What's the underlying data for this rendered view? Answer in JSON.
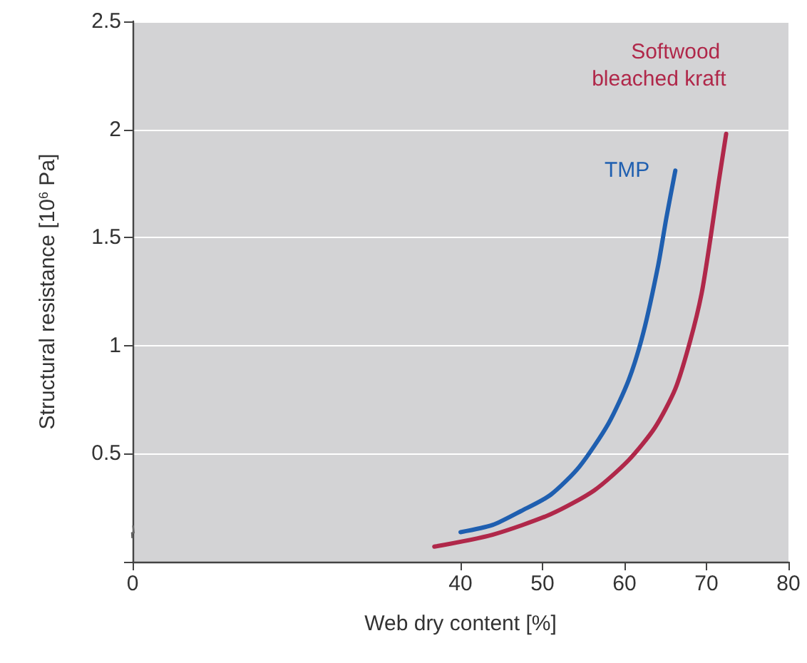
{
  "chart_data": {
    "type": "line",
    "xlabel": "Web dry content [%]",
    "ylabel": "Structural resistance [10$^{6}$ Pa]",
    "xlim": [
      0,
      80
    ],
    "xticks": [
      0,
      40,
      50,
      60,
      70,
      80
    ],
    "ylim": [
      0,
      2.5
    ],
    "yticks": [
      {
        "value": 0,
        "label": null
      },
      0.5,
      1.0,
      1.5,
      2.0,
      2.5
    ],
    "grid": "y",
    "legend": false,
    "marker": "none",
    "line_style": "solid",
    "series": [
      {
        "name": "TMP",
        "color": "#1f5fb0",
        "x": [
          40,
          43.9,
          47.4,
          51.0,
          54.5,
          58.05,
          60.5,
          62.3,
          64.1,
          65.1,
          66.2
        ],
        "values": [
          0.137,
          0.17,
          0.235,
          0.31,
          0.44,
          0.64,
          0.84,
          1.06,
          1.37,
          1.59,
          1.81
        ]
      },
      {
        "name": "Softwood bleached kraft",
        "color": "#b0284a",
        "x": [
          36.8,
          43.9,
          51.0,
          56.3,
          60.5,
          63.7,
          66.2,
          68.0,
          69.4,
          70.5,
          71.5,
          72.4
        ],
        "values": [
          0.07,
          0.125,
          0.22,
          0.33,
          0.47,
          0.62,
          0.8,
          1.02,
          1.24,
          1.5,
          1.76,
          1.98
        ]
      }
    ]
  }
}
